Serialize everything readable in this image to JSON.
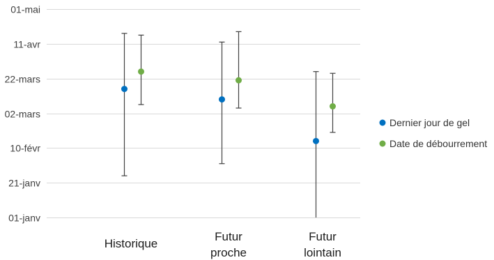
{
  "chart_data": {
    "type": "scatter",
    "title": "",
    "xlabel": "",
    "ylabel": "",
    "categories": [
      [
        "Historique"
      ],
      [
        "Futur",
        "proche"
      ],
      [
        "Futur",
        "lointain"
      ]
    ],
    "y_axis": {
      "kind": "date",
      "ticks": [
        "01-janv",
        "21-janv",
        "10-févr",
        "02-mars",
        "22-mars",
        "11-avr",
        "01-mai"
      ],
      "tick_values": [
        1,
        21,
        41,
        61,
        81,
        101,
        121
      ],
      "ylim": [
        1,
        121
      ]
    },
    "grid": true,
    "legend_position": "right",
    "series": [
      {
        "name": "Dernier jour de gel",
        "color": "#0070C0",
        "points": [
          {
            "category": "Historique",
            "y": 75,
            "err_low": 25,
            "err_high": 107
          },
          {
            "category": "Futur proche",
            "y": 69,
            "err_low": 32,
            "err_high": 102
          },
          {
            "category": "Futur lointain",
            "y": 45,
            "err_low": 1,
            "err_high": 85
          }
        ]
      },
      {
        "name": "Date de débourrement",
        "color": "#70AD47",
        "points": [
          {
            "category": "Historique",
            "y": 85,
            "err_low": 66,
            "err_high": 106
          },
          {
            "category": "Futur proche",
            "y": 80,
            "err_low": 64,
            "err_high": 108
          },
          {
            "category": "Futur lointain",
            "y": 65,
            "err_low": 50,
            "err_high": 84
          }
        ]
      }
    ]
  }
}
